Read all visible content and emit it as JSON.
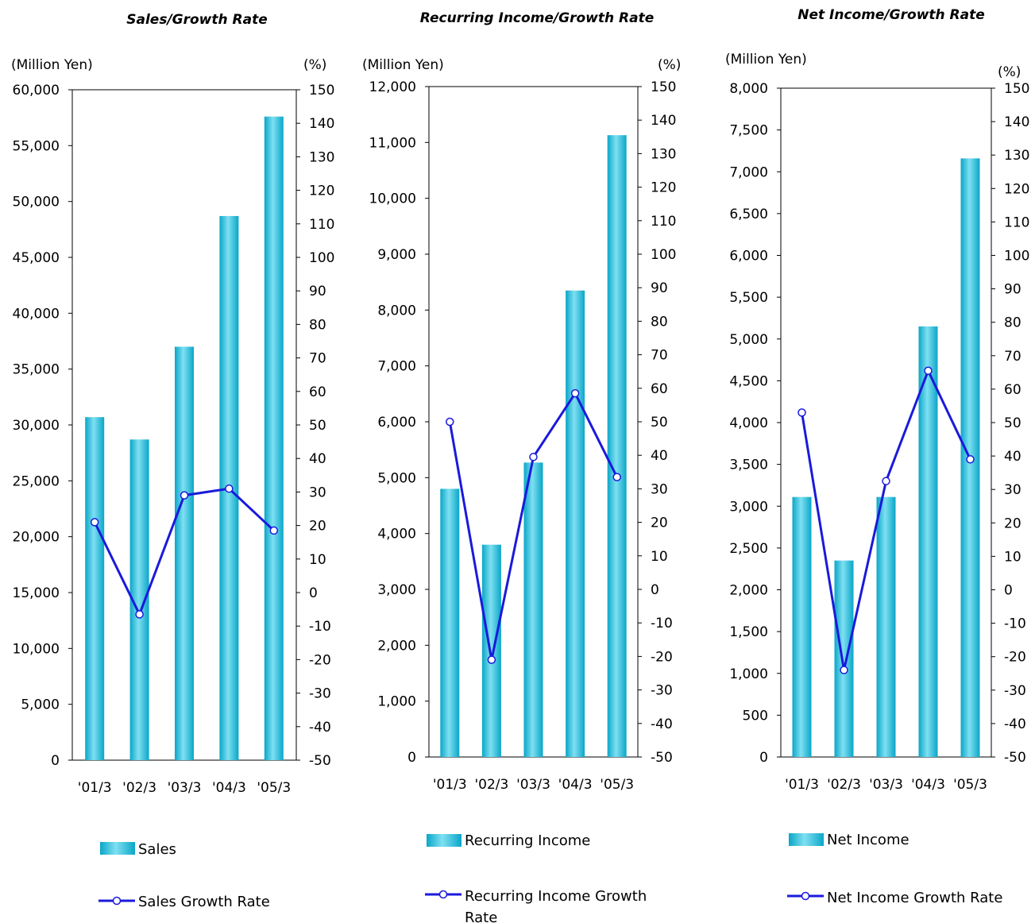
{
  "chart_data": [
    {
      "type": "bar",
      "title": "Sales/Growth Rate",
      "y_unit_left": "(Million Yen)",
      "y_unit_right": "(%)",
      "categories": [
        "'01/3",
        "'02/3",
        "'03/3",
        "'04/3",
        "'05/3"
      ],
      "ylim_left": [
        0,
        60000
      ],
      "yticks_left": [
        "0",
        "5,000",
        "10,000",
        "15,000",
        "20,000",
        "25,000",
        "30,000",
        "35,000",
        "40,000",
        "45,000",
        "50,000",
        "55,000",
        "60,000"
      ],
      "ylim_right": [
        -50,
        150
      ],
      "yticks_right": [
        "-50",
        "-40",
        "-30",
        "-20",
        "-10",
        "0",
        "10",
        "20",
        "30",
        "40",
        "50",
        "60",
        "70",
        "80",
        "90",
        "100",
        "110",
        "120",
        "130",
        "140",
        "150"
      ],
      "series": [
        {
          "name": "Sales",
          "kind": "bar",
          "axis": "left",
          "values": [
            30700,
            28700,
            37000,
            48700,
            57600
          ]
        },
        {
          "name": "Sales Growth Rate",
          "kind": "line",
          "axis": "right",
          "values": [
            21,
            -6.5,
            29,
            31,
            18.5
          ]
        }
      ],
      "legend_position": "bottom"
    },
    {
      "type": "bar",
      "title": "Recurring Income/Growth Rate",
      "y_unit_left": "(Million Yen)",
      "y_unit_right": "(%)",
      "categories": [
        "'01/3",
        "'02/3",
        "'03/3",
        "'04/3",
        "'05/3"
      ],
      "ylim_left": [
        0,
        12000
      ],
      "yticks_left": [
        "0",
        "1,000",
        "2,000",
        "3,000",
        "4,000",
        "5,000",
        "6,000",
        "7,000",
        "8,000",
        "9,000",
        "10,000",
        "11,000",
        "12,000"
      ],
      "ylim_right": [
        -50,
        150
      ],
      "yticks_right": [
        "-50",
        "-40",
        "-30",
        "-20",
        "-10",
        "0",
        "10",
        "20",
        "30",
        "40",
        "50",
        "60",
        "70",
        "80",
        "90",
        "100",
        "110",
        "120",
        "130",
        "140",
        "150"
      ],
      "series": [
        {
          "name": "Recurring Income",
          "kind": "bar",
          "axis": "left",
          "values": [
            4800,
            3800,
            5270,
            8350,
            11130
          ]
        },
        {
          "name": "Recurring Income Growth Rate",
          "kind": "line",
          "axis": "right",
          "values": [
            50,
            -21,
            39.5,
            58.5,
            33.5
          ]
        }
      ],
      "legend_position": "bottom"
    },
    {
      "type": "bar",
      "title": "Net Income/Growth Rate",
      "y_unit_left": "(Million Yen)",
      "y_unit_right": "(%)",
      "categories": [
        "'01/3",
        "'02/3",
        "'03/3",
        "'04/3",
        "'05/3"
      ],
      "ylim_left": [
        0,
        8000
      ],
      "yticks_left": [
        "0",
        "500",
        "1,000",
        "1,500",
        "2,000",
        "2,500",
        "3,000",
        "3,500",
        "4,000",
        "4,500",
        "5,000",
        "5,500",
        "6,000",
        "6,500",
        "7,000",
        "7,500",
        "8,000"
      ],
      "ylim_right": [
        -50,
        150
      ],
      "yticks_right": [
        "-50",
        "-40",
        "-30",
        "-20",
        "-10",
        "0",
        "10",
        "20",
        "30",
        "40",
        "50",
        "60",
        "70",
        "80",
        "90",
        "100",
        "110",
        "120",
        "130",
        "140",
        "150"
      ],
      "series": [
        {
          "name": "Net Income",
          "kind": "bar",
          "axis": "left",
          "values": [
            3110,
            2350,
            3110,
            5150,
            7160
          ]
        },
        {
          "name": "Net Income Growth Rate",
          "kind": "line",
          "axis": "right",
          "values": [
            53,
            -24,
            32.5,
            65.5,
            39
          ]
        }
      ],
      "legend_position": "bottom"
    }
  ],
  "colors": {
    "bar_light": "#7fe0f2",
    "bar_mid": "#1ec3e6",
    "bar_dark": "#0aa6c8",
    "line": "#1a1adb",
    "marker_fill": "#ffffff"
  }
}
